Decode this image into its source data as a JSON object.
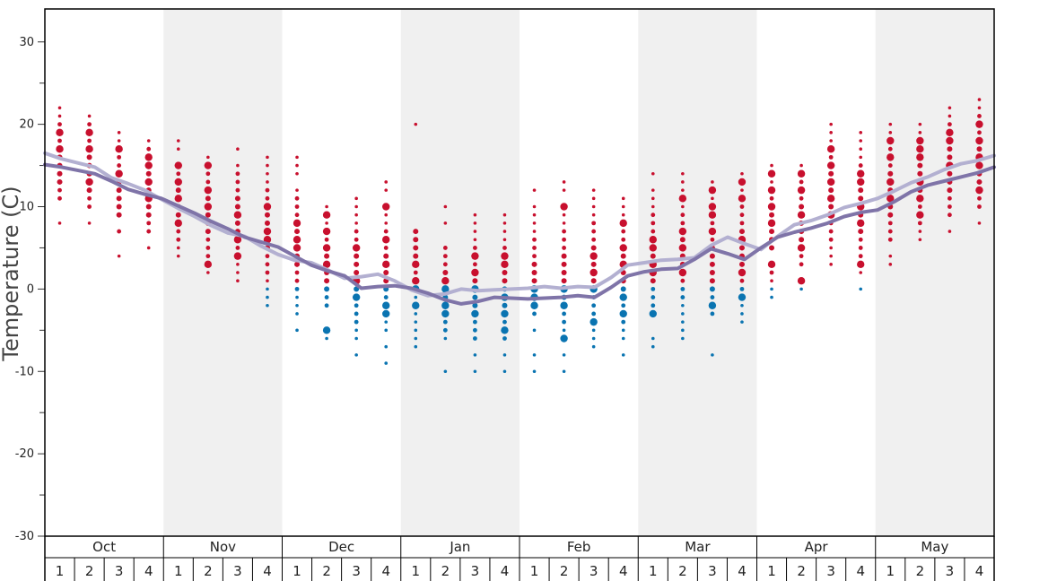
{
  "chart_data": {
    "type": "scatter",
    "ylabel": "Temperature (C)",
    "ylim": [
      -30,
      34
    ],
    "yticks": [
      30,
      20,
      10,
      0,
      -10,
      -20,
      -30
    ],
    "months": [
      "Oct",
      "Nov",
      "Dec",
      "Jan",
      "Feb",
      "Mar",
      "Apr",
      "May"
    ],
    "weeks_per_month": [
      "1",
      "2",
      "3",
      "4"
    ],
    "shaded_months": [
      "Nov",
      "Jan",
      "Mar",
      "May"
    ],
    "colors": {
      "warm": "#c8102e",
      "cold": "#0a74b1",
      "line_light": "#b3b0d1",
      "line_dark": "#7f74a8",
      "shade": "#f0f0f0",
      "axis": "#000000"
    },
    "lines": [
      {
        "role": "upper",
        "values": [
          16.5,
          15.8,
          15.3,
          14.8,
          13.5,
          12.8,
          12.0,
          10.9,
          9.8,
          8.8,
          7.7,
          6.8,
          6.4,
          5.2,
          4.2,
          3.5,
          3.2,
          2.3,
          1.3,
          1.5,
          1.8,
          1.0,
          -0.1,
          -0.8,
          -0.6,
          0.0,
          -0.2,
          -0.1,
          0.0,
          0.1,
          0.3,
          0.1,
          0.3,
          0.2,
          1.4,
          2.9,
          3.2,
          3.5,
          3.6,
          3.8,
          5.3,
          6.3,
          5.5,
          4.8,
          6.4,
          7.8,
          8.3,
          9.0,
          9.9,
          10.4,
          11.0,
          11.9,
          12.9,
          13.6,
          14.5,
          15.2,
          15.6,
          16.2
        ]
      },
      {
        "role": "lower",
        "values": [
          15.1,
          14.8,
          14.4,
          14.0,
          13.1,
          12.1,
          11.5,
          11.0,
          10.1,
          9.2,
          8.2,
          7.3,
          6.3,
          5.7,
          5.1,
          4.0,
          2.9,
          2.2,
          1.6,
          0.1,
          0.3,
          0.4,
          0.1,
          -0.5,
          -1.3,
          -1.8,
          -1.5,
          -1.0,
          -1.1,
          -1.2,
          -1.1,
          -1.0,
          -0.8,
          -1.0,
          0.2,
          1.6,
          2.1,
          2.4,
          2.5,
          3.6,
          4.9,
          4.3,
          3.6,
          5.0,
          6.3,
          6.9,
          7.4,
          8.0,
          8.8,
          9.3,
          9.6,
          10.6,
          11.8,
          12.6,
          13.1,
          13.6,
          14.1,
          14.8
        ]
      }
    ],
    "points": [
      {
        "week": 1,
        "temps": [
          22,
          21,
          20,
          19,
          18,
          17,
          16,
          15,
          14,
          13,
          12,
          11,
          8
        ],
        "big": [
          19,
          17
        ]
      },
      {
        "week": 2,
        "temps": [
          21,
          20,
          19,
          18,
          17,
          16,
          15,
          14,
          13,
          12,
          11,
          10,
          8
        ],
        "big": [
          19,
          17,
          13
        ]
      },
      {
        "week": 3,
        "temps": [
          19,
          18,
          17,
          16,
          15,
          14,
          13,
          12,
          11,
          10,
          9,
          7,
          4
        ],
        "big": [
          17,
          14
        ]
      },
      {
        "week": 4,
        "temps": [
          18,
          17,
          16,
          15,
          14,
          13,
          12,
          11,
          10,
          9,
          8,
          7,
          5
        ],
        "big": [
          16,
          15,
          13,
          11
        ]
      },
      {
        "week": 5,
        "temps": [
          18,
          17,
          15,
          14,
          13,
          12,
          11,
          10,
          9,
          8,
          7,
          6,
          5,
          4
        ],
        "big": [
          15,
          13,
          11,
          8
        ]
      },
      {
        "week": 6,
        "temps": [
          16,
          15,
          14,
          13,
          12,
          11,
          10,
          9,
          8,
          7,
          6,
          5,
          4,
          3,
          2
        ],
        "big": [
          15,
          12,
          10,
          3
        ]
      },
      {
        "week": 7,
        "temps": [
          17,
          15,
          14,
          13,
          12,
          11,
          10,
          9,
          8,
          7,
          6,
          5,
          4,
          3,
          2,
          1
        ],
        "big": [
          9,
          6,
          4
        ]
      },
      {
        "week": 8,
        "temps": [
          16,
          15,
          14,
          13,
          12,
          11,
          10,
          9,
          8,
          7,
          6,
          5,
          4,
          3,
          2,
          1,
          0,
          -1,
          -2
        ],
        "big": [
          10,
          7,
          6
        ]
      },
      {
        "week": 9,
        "temps": [
          16,
          15,
          14,
          12,
          11,
          10,
          9,
          8,
          7,
          6,
          5,
          4,
          3,
          2,
          1,
          0,
          -1,
          -2,
          -3,
          -5
        ],
        "big": [
          8,
          6,
          5
        ]
      },
      {
        "week": 10,
        "temps": [
          10,
          9,
          8,
          7,
          6,
          5,
          4,
          3,
          2,
          1,
          0,
          -1,
          -2,
          -5,
          -6
        ],
        "big": [
          9,
          7,
          5,
          3,
          -5
        ]
      },
      {
        "week": 11,
        "temps": [
          11,
          10,
          9,
          8,
          7,
          6,
          5,
          4,
          3,
          2,
          1,
          0,
          -1,
          -2,
          -3,
          -4,
          -5,
          -6,
          -8
        ],
        "big": [
          5,
          1,
          -1
        ]
      },
      {
        "week": 12,
        "temps": [
          13,
          12,
          10,
          9,
          8,
          7,
          6,
          5,
          4,
          3,
          2,
          1,
          0,
          -1,
          -2,
          -3,
          -4,
          -5,
          -7,
          -9
        ],
        "big": [
          10,
          6,
          3,
          -2,
          -3
        ]
      },
      {
        "week": 13,
        "temps": [
          20,
          7,
          6,
          5,
          4,
          3,
          2,
          1,
          0,
          -1,
          -2,
          -3,
          -4,
          -5,
          -6,
          -7
        ],
        "big": [
          3,
          1,
          0,
          -2
        ]
      },
      {
        "week": 14,
        "temps": [
          10,
          8,
          5,
          4,
          3,
          2,
          1,
          0,
          -1,
          -2,
          -3,
          -4,
          -5,
          -6,
          -10
        ],
        "big": [
          1,
          0,
          -2,
          -3
        ]
      },
      {
        "week": 15,
        "temps": [
          9,
          8,
          7,
          6,
          5,
          4,
          3,
          2,
          1,
          0,
          -1,
          -2,
          -3,
          -4,
          -5,
          -6,
          -8,
          -10
        ],
        "big": [
          4,
          2,
          0,
          -3
        ]
      },
      {
        "week": 16,
        "temps": [
          9,
          8,
          7,
          6,
          5,
          4,
          3,
          2,
          1,
          0,
          -1,
          -2,
          -3,
          -4,
          -5,
          -6,
          -8,
          -10
        ],
        "big": [
          4,
          3,
          -1,
          -3,
          -5
        ]
      },
      {
        "week": 17,
        "temps": [
          12,
          10,
          9,
          8,
          7,
          6,
          5,
          4,
          3,
          2,
          1,
          0,
          -1,
          -2,
          -3,
          -5,
          -8,
          -10
        ],
        "big": [
          0,
          -1,
          -2
        ]
      },
      {
        "week": 18,
        "temps": [
          13,
          12,
          10,
          9,
          8,
          7,
          6,
          5,
          4,
          3,
          2,
          1,
          0,
          -1,
          -2,
          -3,
          -4,
          -5,
          -6,
          -8,
          -10
        ],
        "big": [
          10,
          0,
          -2,
          -6
        ]
      },
      {
        "week": 19,
        "temps": [
          12,
          11,
          10,
          9,
          8,
          7,
          6,
          5,
          4,
          3,
          2,
          1,
          0,
          -1,
          -2,
          -3,
          -4,
          -5,
          -6,
          -7
        ],
        "big": [
          4,
          2,
          0,
          -4
        ]
      },
      {
        "week": 20,
        "temps": [
          11,
          10,
          9,
          8,
          7,
          6,
          5,
          4,
          3,
          2,
          1,
          0,
          -1,
          -2,
          -3,
          -4,
          -5,
          -6,
          -8
        ],
        "big": [
          8,
          5,
          3,
          -1,
          -3
        ]
      },
      {
        "week": 21,
        "temps": [
          14,
          12,
          11,
          10,
          9,
          8,
          7,
          6,
          5,
          4,
          3,
          2,
          1,
          0,
          -1,
          -2,
          -3,
          -6,
          -7
        ],
        "big": [
          6,
          5,
          3,
          2,
          -3
        ]
      },
      {
        "week": 22,
        "temps": [
          14,
          13,
          12,
          11,
          10,
          9,
          8,
          7,
          6,
          5,
          4,
          3,
          2,
          1,
          0,
          -1,
          -2,
          -3,
          -4,
          -5,
          -6
        ],
        "big": [
          11,
          7,
          5,
          2
        ]
      },
      {
        "week": 23,
        "temps": [
          13,
          12,
          11,
          10,
          9,
          8,
          7,
          6,
          5,
          4,
          3,
          2,
          1,
          0,
          -1,
          -2,
          -3,
          -8
        ],
        "big": [
          12,
          10,
          9,
          7,
          -2
        ]
      },
      {
        "week": 24,
        "temps": [
          14,
          13,
          12,
          11,
          10,
          9,
          8,
          7,
          6,
          5,
          4,
          3,
          2,
          1,
          0,
          -1,
          -2,
          -3,
          -4
        ],
        "big": [
          13,
          11,
          6,
          2,
          -1
        ]
      },
      {
        "week": 25,
        "temps": [
          15,
          14,
          13,
          12,
          11,
          10,
          9,
          8,
          7,
          6,
          5,
          3,
          2,
          1,
          0,
          -1
        ],
        "big": [
          14,
          12,
          10,
          8,
          3
        ]
      },
      {
        "week": 26,
        "temps": [
          15,
          14,
          13,
          12,
          11,
          10,
          9,
          8,
          7,
          6,
          5,
          4,
          3,
          1,
          0
        ],
        "big": [
          14,
          12,
          9,
          5,
          1
        ]
      },
      {
        "week": 27,
        "temps": [
          20,
          19,
          18,
          17,
          16,
          15,
          14,
          13,
          12,
          11,
          10,
          9,
          8,
          7,
          6,
          5,
          4,
          3
        ],
        "big": [
          17,
          15,
          13,
          11,
          9
        ]
      },
      {
        "week": 28,
        "temps": [
          19,
          18,
          17,
          16,
          15,
          14,
          13,
          12,
          11,
          10,
          9,
          8,
          7,
          6,
          5,
          4,
          3,
          2,
          0
        ],
        "big": [
          14,
          13,
          10,
          8,
          3
        ]
      },
      {
        "week": 29,
        "temps": [
          20,
          19,
          18,
          17,
          16,
          15,
          14,
          13,
          12,
          11,
          10,
          9,
          8,
          7,
          6,
          4,
          3
        ],
        "big": [
          18,
          16,
          13,
          11
        ]
      },
      {
        "week": 30,
        "temps": [
          20,
          19,
          18,
          17,
          16,
          15,
          14,
          13,
          12,
          11,
          10,
          9,
          8,
          7,
          6
        ],
        "big": [
          18,
          17,
          16,
          13,
          11,
          9
        ]
      },
      {
        "week": 31,
        "temps": [
          22,
          21,
          20,
          19,
          18,
          17,
          16,
          15,
          14,
          13,
          12,
          11,
          10,
          9,
          7
        ],
        "big": [
          19,
          18,
          15
        ]
      },
      {
        "week": 32,
        "temps": [
          23,
          22,
          21,
          20,
          19,
          18,
          17,
          16,
          15,
          14,
          13,
          12,
          11,
          10,
          8
        ],
        "big": [
          20,
          18,
          16,
          15,
          12
        ]
      }
    ]
  }
}
